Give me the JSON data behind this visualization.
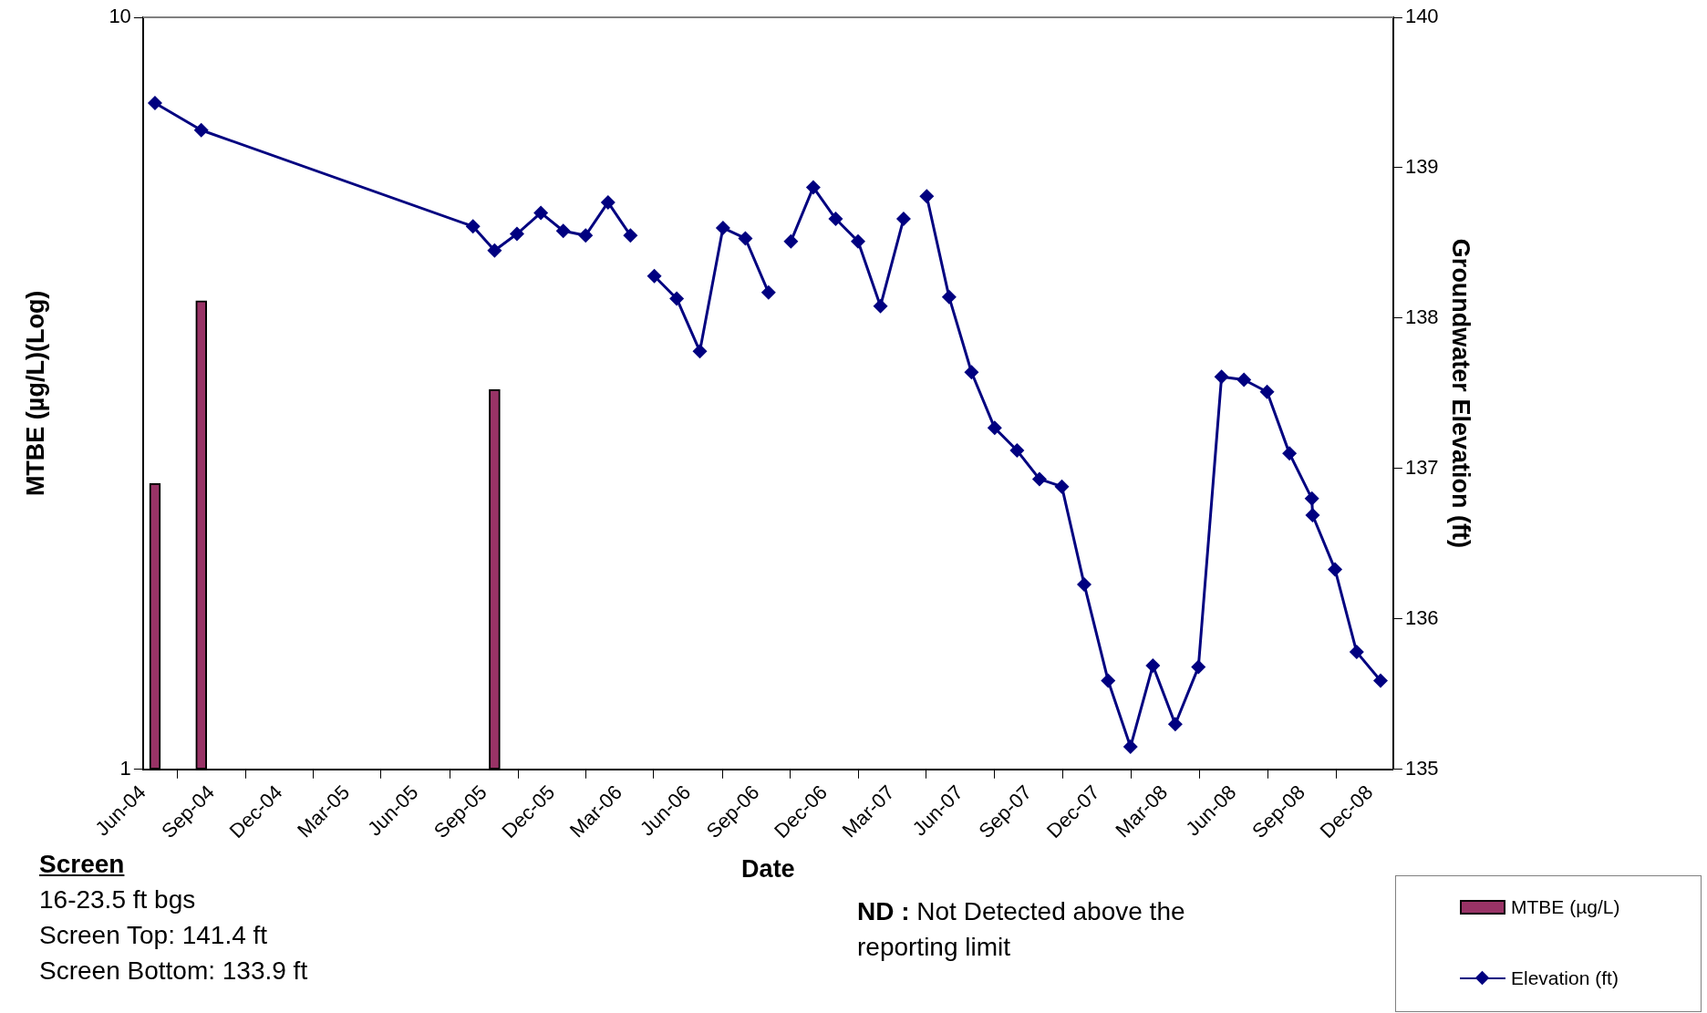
{
  "chart_data": {
    "type": "bar",
    "xlabel": "Date",
    "ylabel": "MTBE (µg/L)(Log)",
    "y2label": "Groundwater Elevation (ft)",
    "log": "y",
    "grid": false,
    "legend": "bottom right",
    "marker": "diamond",
    "line_style": "solid",
    "xlim": [
      "2004-06-01",
      "2009-01-01"
    ],
    "xticks": [
      {
        "value": "2004-06-01",
        "label": "Jun-04"
      },
      {
        "value": "2004-09-01",
        "label": "Sep-04"
      },
      {
        "value": "2004-12-01",
        "label": "Dec-04"
      },
      {
        "value": "2005-03-01",
        "label": "Mar-05"
      },
      {
        "value": "2005-06-01",
        "label": "Jun-05"
      },
      {
        "value": "2005-09-01",
        "label": "Sep-05"
      },
      {
        "value": "2005-12-01",
        "label": "Dec-05"
      },
      {
        "value": "2006-03-01",
        "label": "Mar-06"
      },
      {
        "value": "2006-06-01",
        "label": "Jun-06"
      },
      {
        "value": "2006-09-01",
        "label": "Sep-06"
      },
      {
        "value": "2006-12-01",
        "label": "Dec-06"
      },
      {
        "value": "2007-03-01",
        "label": "Mar-07"
      },
      {
        "value": "2007-06-01",
        "label": "Jun-07"
      },
      {
        "value": "2007-09-01",
        "label": "Sep-07"
      },
      {
        "value": "2007-12-01",
        "label": "Dec-07"
      },
      {
        "value": "2008-03-01",
        "label": "Mar-08"
      },
      {
        "value": "2008-06-01",
        "label": "Jun-08"
      },
      {
        "value": "2008-09-01",
        "label": "Sep-08"
      },
      {
        "value": "2008-12-01",
        "label": "Dec-08"
      }
    ],
    "ylim": [
      1,
      10
    ],
    "yticks": [
      1,
      10
    ],
    "y2lim": [
      135,
      140
    ],
    "y2ticks": [
      135,
      136,
      137,
      138,
      139,
      140
    ],
    "series": [
      {
        "name": "MTBE (µg/L)",
        "color": "#993366",
        "x": [
          "2004-06-17",
          "2004-08-18",
          "2005-09-15"
        ],
        "values": [
          2.4,
          4.2,
          3.2
        ]
      },
      {
        "name": "Elevation (ft)",
        "type": "line",
        "axis": "y2",
        "color": "#000080",
        "x": [
          "2004-06-17",
          "2004-08-18",
          "2005-08-17",
          "2005-09-15",
          "2005-10-15",
          "2005-11-16",
          "2005-12-16",
          "2006-01-15",
          "2006-02-14",
          "2006-03-16",
          "2006-04-01",
          "2006-04-17",
          "2006-05-17",
          "2006-06-17",
          "2006-07-18",
          "2006-08-17",
          "2006-09-17",
          "2006-10-01",
          "2006-10-17",
          "2006-11-16",
          "2006-12-16",
          "2007-01-15",
          "2007-02-14",
          "2007-03-17",
          "2007-04-01",
          "2007-04-17",
          "2007-05-17",
          "2007-06-16",
          "2007-07-17",
          "2007-08-16",
          "2007-09-15",
          "2007-10-15",
          "2007-11-14",
          "2007-12-16",
          "2008-01-15",
          "2008-02-14",
          "2008-03-15",
          "2008-04-15",
          "2008-05-16",
          "2008-06-15",
          "2008-07-16",
          "2008-08-15",
          "2008-09-14",
          "2008-09-15",
          "2008-10-15",
          "2008-11-13",
          "2008-12-15"
        ],
        "values": [
          139.43,
          139.25,
          138.61,
          138.45,
          138.56,
          138.7,
          138.58,
          138.55,
          138.77,
          138.55,
          null,
          138.28,
          138.13,
          137.78,
          138.6,
          138.53,
          138.17,
          null,
          138.51,
          138.87,
          138.66,
          138.51,
          138.08,
          138.66,
          null,
          138.81,
          138.14,
          137.64,
          137.27,
          137.12,
          136.93,
          136.88,
          136.23,
          135.59,
          135.15,
          135.69,
          135.3,
          135.68,
          137.61,
          137.59,
          137.51,
          137.1,
          136.8,
          136.69,
          136.33,
          135.78,
          135.59
        ]
      }
    ],
    "annotations": [
      "Screen",
      "16-23.5 ft bgs",
      "Screen Top: 141.4 ft",
      "Screen Bottom: 133.9 ft",
      "ND :",
      "Not Detected above the reporting limit"
    ]
  }
}
